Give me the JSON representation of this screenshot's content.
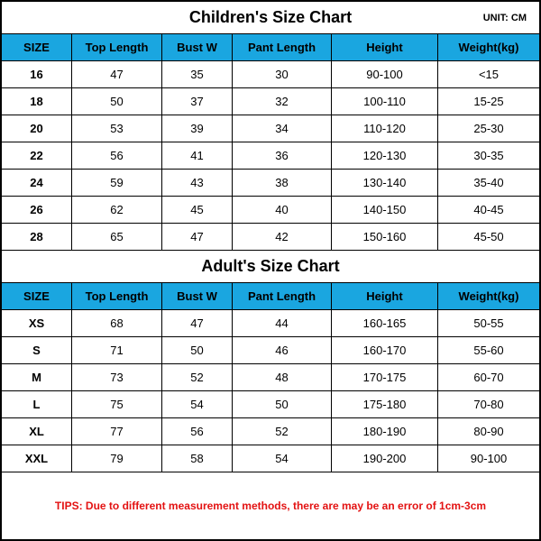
{
  "unit_label": "UNIT: CM",
  "columns": [
    "SIZE",
    "Top Length",
    "Bust W",
    "Pant Length",
    "Height",
    "Weight(kg)"
  ],
  "children": {
    "title": "Children's Size Chart",
    "rows": [
      [
        "16",
        "47",
        "35",
        "30",
        "90-100",
        "<15"
      ],
      [
        "18",
        "50",
        "37",
        "32",
        "100-110",
        "15-25"
      ],
      [
        "20",
        "53",
        "39",
        "34",
        "110-120",
        "25-30"
      ],
      [
        "22",
        "56",
        "41",
        "36",
        "120-130",
        "30-35"
      ],
      [
        "24",
        "59",
        "43",
        "38",
        "130-140",
        "35-40"
      ],
      [
        "26",
        "62",
        "45",
        "40",
        "140-150",
        "40-45"
      ],
      [
        "28",
        "65",
        "47",
        "42",
        "150-160",
        "45-50"
      ]
    ]
  },
  "adult": {
    "title": "Adult's Size Chart",
    "rows": [
      [
        "XS",
        "68",
        "47",
        "44",
        "160-165",
        "50-55"
      ],
      [
        "S",
        "71",
        "50",
        "46",
        "160-170",
        "55-60"
      ],
      [
        "M",
        "73",
        "52",
        "48",
        "170-175",
        "60-70"
      ],
      [
        "L",
        "75",
        "54",
        "50",
        "175-180",
        "70-80"
      ],
      [
        "XL",
        "77",
        "56",
        "52",
        "180-190",
        "80-90"
      ],
      [
        "XXL",
        "79",
        "58",
        "54",
        "190-200",
        "90-100"
      ]
    ]
  },
  "tips": "TIPS: Due to different measurement methods, there are may be an error of 1cm-3cm",
  "colors": {
    "header_bg": "#1aa6e0",
    "border": "#000000",
    "tips_color": "#e31212",
    "background": "#ffffff"
  }
}
